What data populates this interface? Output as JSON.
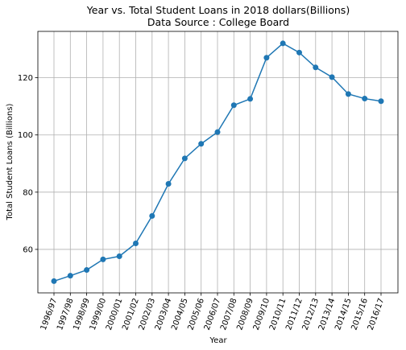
{
  "chart_data": {
    "type": "line",
    "title": "Year vs. Total Student Loans in 2018 dollars(Billions)",
    "subtitle": "Data Source : College Board",
    "xlabel": "Year",
    "ylabel": "Total Student Loans (Billions)",
    "categories": [
      "1996/97",
      "1997/98",
      "1998/99",
      "1999/00",
      "2000/01",
      "2001/02",
      "2002/03",
      "2003/04",
      "2004/05",
      "2005/06",
      "2006/07",
      "2007/08",
      "2008/09",
      "2009/10",
      "2010/11",
      "2011/12",
      "2012/13",
      "2013/14",
      "2014/15",
      "2015/16",
      "2016/17"
    ],
    "series": [
      {
        "values": [
          48.9,
          50.8,
          52.8,
          56.5,
          57.6,
          62.1,
          71.7,
          82.9,
          91.8,
          96.9,
          101.0,
          110.4,
          112.6,
          127.0,
          132.0,
          128.8,
          123.6,
          120.2,
          114.3,
          112.7,
          111.8
        ],
        "color": "#1f77b4"
      }
    ],
    "ylim": [
      44.8,
      136.2
    ],
    "yticks": [
      60,
      80,
      100,
      120
    ],
    "grid": true,
    "legend": "none"
  }
}
